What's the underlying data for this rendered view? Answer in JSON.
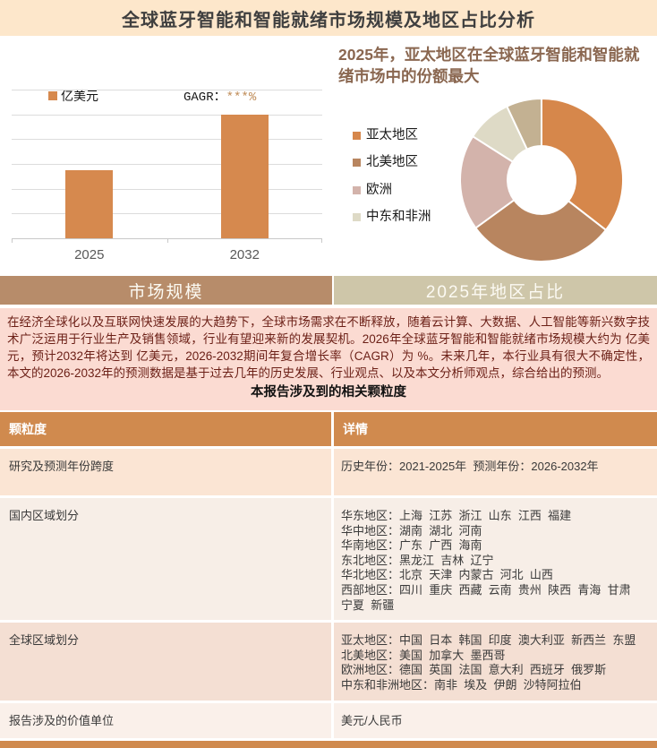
{
  "header": {
    "title": "全球蓝牙智能和智能就绪市场规模及地区占比分析",
    "bg": "#FDE7CB",
    "text_color": "#3F3F3F"
  },
  "bar_section": {
    "legend_label": "亿美元",
    "cagr_prefix": "GAGR：",
    "cagr_value": "***%",
    "cagr_value_color": "#BE8A55"
  },
  "pie_section": {
    "title": "2025年，亚太地区在全球蓝牙智能和智能就绪市场中的份额最大",
    "title_color": "#8A6750",
    "legend": [
      {
        "label": "亚太地区",
        "color": "#D6874B"
      },
      {
        "label": "北美地区",
        "color": "#B8855F"
      },
      {
        "label": "欧洲",
        "color": "#D3B3AB"
      },
      {
        "label": "中东和非洲",
        "color": "#DEDAC6"
      }
    ]
  },
  "chart_data": [
    {
      "type": "bar",
      "categories": [
        "2025",
        "2032"
      ],
      "values": [
        2.73,
        5.0
      ],
      "title": "",
      "xlabel": "",
      "ylabel": "亿美元",
      "ylim": [
        0,
        6
      ],
      "grid": true,
      "legend": [
        "亿美元"
      ],
      "legend_position": "top-left",
      "annotation": "GAGR：***%",
      "bar_color": "#D6894E",
      "note": "柱上数值在原图中被隐藏(***)；values 为按网格线估算的相对高度(网格格数)，纵轴无刻度标签"
    },
    {
      "type": "pie",
      "subtype": "donut",
      "labels": [
        "亚太地区",
        "北美地区",
        "欧洲",
        "中东和非洲",
        ""
      ],
      "values": [
        35.5,
        29.5,
        19,
        9,
        7
      ],
      "unit": "%",
      "colors": [
        "#D6874B",
        "#B8855F",
        "#D3B3AB",
        "#DEDAC6",
        "#C3B192"
      ],
      "title": "2025年，亚太地区在全球蓝牙智能和智能就绪市场中的份额最大",
      "legend_position": "left",
      "note": "各扇区占比未在图中标注，values 按扇区角度估算；第5个小扇区在图例中无标签"
    }
  ],
  "tabs": [
    {
      "label": "市场规模",
      "bg": "#B78C6A"
    },
    {
      "label": "2025年地区占比",
      "bg": "#CEC6A9"
    }
  ],
  "intro": {
    "bg": "#FBDBD2",
    "text_color": "#6B1F16",
    "text": "在经济全球化以及互联网快速发展的大趋势下，全球市场需求在不断释放，随着云计算、大数据、人工智能等新兴数字技术广泛运用于行业生产及销售领域，行业有望迎来新的发展契机。2026年全球蓝牙智能和智能就绪市场规模大约为 亿美元，预计2032年将达到 亿美元，2026-2032期间年复合增长率（CAGR）为 %。未来几年，本行业具有很大不确定性，本文的2026-2032年的预测数据是基于过去几年的历史发展、行业观点、以及本文分析师观点，综合给出的预测。",
    "table_title": "本报告涉及到的相关颗粒度"
  },
  "table": {
    "header_bg": "#D08A4E",
    "headers": [
      "颗粒度",
      "详情"
    ],
    "rows": [
      {
        "label": "研究及预测年份跨度",
        "detail": "历史年份：2021-2025年  预测年份：2026-2032年",
        "bg": "#FBE5D4"
      },
      {
        "label": "国内区域划分",
        "detail": "华东地区：上海  江苏  浙江  山东  江西  福建\n华中地区：湖南  湖北  河南\n华南地区：广东  广西  海南\n东北地区：黑龙江  吉林  辽宁\n华北地区：北京  天津  内蒙古  河北  山西\n西部地区：四川  重庆  西藏  云南  贵州  陕西  青海  甘肃  宁夏  新疆",
        "bg": "#F7EEE7"
      },
      {
        "label": "全球区域划分",
        "detail": "亚太地区：中国  日本  韩国  印度  澳大利亚  新西兰  东盟\n北美地区：美国  加拿大  墨西哥\n欧洲地区：德国  英国  法国  意大利  西班牙  俄罗斯\n中东和非洲地区：南非  埃及  伊朗  沙特阿拉伯",
        "bg": "#F4DFD3"
      },
      {
        "label": "报告涉及的价值单位",
        "detail": "美元/人民币",
        "bg": "#FAF0EA"
      }
    ]
  },
  "footer": {
    "bar_color": "#D08A4E"
  }
}
